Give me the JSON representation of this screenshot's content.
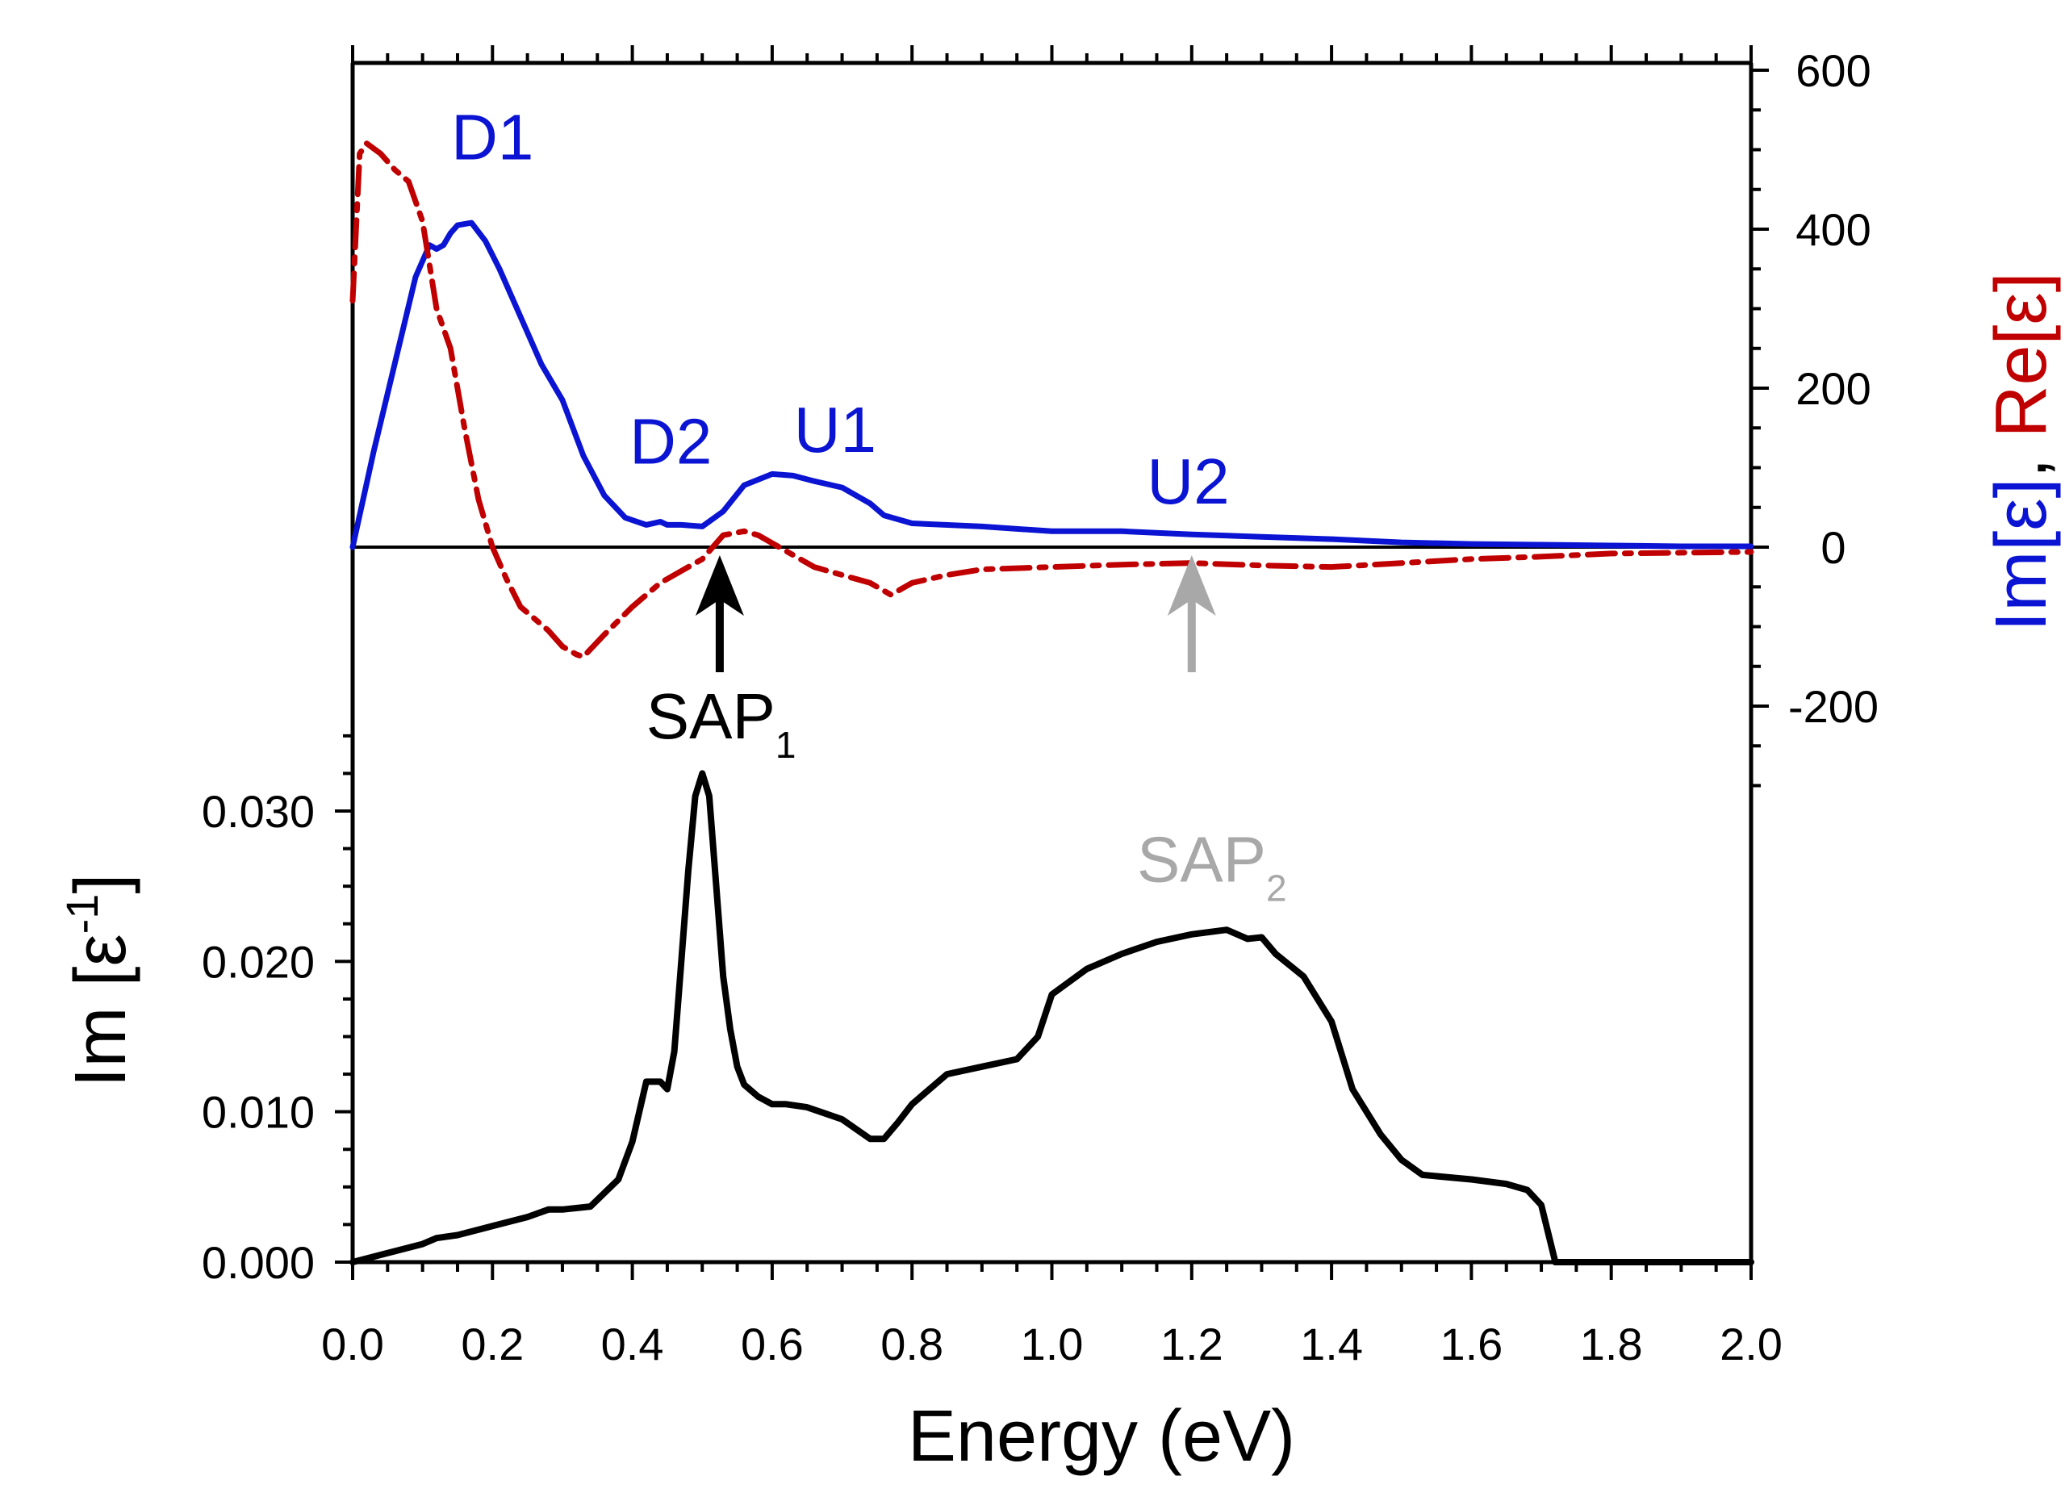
{
  "chart_data": {
    "type": "line",
    "x_axis": {
      "label": "Energy (eV)",
      "range": [
        0.0,
        2.0
      ],
      "major_ticks": [
        0.0,
        0.2,
        0.4,
        0.6,
        0.8,
        1.0,
        1.2,
        1.4,
        1.6,
        1.8,
        2.0
      ],
      "tick_labels": [
        "0.0",
        "0.2",
        "0.4",
        "0.6",
        "0.8",
        "1.0",
        "1.2",
        "1.4",
        "1.6",
        "1.8",
        "2.0"
      ]
    },
    "left_axis": {
      "label_main": "Im [ε",
      "label_sup": "-1",
      "label_close": "]",
      "range": [
        0.0,
        0.0345
      ],
      "major_ticks": [
        0.0,
        0.01,
        0.02,
        0.03
      ],
      "tick_labels": [
        "0.000",
        "0.010",
        "0.020",
        "0.030"
      ]
    },
    "right_axis": {
      "label_im": "Im[ε]",
      "label_sep": ", ",
      "label_re": "Re[ε]",
      "range": [
        -300,
        600
      ],
      "major_ticks": [
        -200,
        0,
        200,
        400,
        600
      ],
      "tick_labels": [
        "-200",
        "0",
        "200",
        "400",
        "600"
      ]
    },
    "series": [
      {
        "name": "Im[ε]",
        "axis": "right",
        "color": "#0a14d2",
        "style": "solid",
        "x": [
          0.0,
          0.03,
          0.06,
          0.09,
          0.11,
          0.12,
          0.13,
          0.14,
          0.15,
          0.17,
          0.19,
          0.21,
          0.24,
          0.27,
          0.3,
          0.33,
          0.36,
          0.39,
          0.42,
          0.44,
          0.45,
          0.47,
          0.5,
          0.53,
          0.56,
          0.6,
          0.63,
          0.66,
          0.7,
          0.74,
          0.76,
          0.8,
          0.9,
          1.0,
          1.1,
          1.2,
          1.3,
          1.4,
          1.5,
          1.6,
          1.7,
          1.8,
          1.9,
          2.0
        ],
        "y": [
          0,
          120,
          230,
          340,
          380,
          375,
          380,
          395,
          405,
          408,
          385,
          350,
          290,
          230,
          185,
          115,
          65,
          37,
          28,
          32,
          28,
          28,
          26,
          45,
          78,
          92,
          90,
          83,
          75,
          55,
          40,
          30,
          26,
          20,
          20,
          16,
          13,
          10,
          6,
          4,
          3,
          2,
          1,
          1
        ]
      },
      {
        "name": "Re[ε]",
        "axis": "right",
        "color": "#c00000",
        "style": "dash-dot",
        "x": [
          0.0,
          0.01,
          0.02,
          0.04,
          0.06,
          0.08,
          0.1,
          0.12,
          0.14,
          0.16,
          0.18,
          0.2,
          0.22,
          0.24,
          0.26,
          0.28,
          0.3,
          0.32,
          0.33,
          0.36,
          0.4,
          0.44,
          0.47,
          0.5,
          0.53,
          0.56,
          0.58,
          0.62,
          0.66,
          0.7,
          0.74,
          0.77,
          0.8,
          0.85,
          0.9,
          1.0,
          1.1,
          1.2,
          1.3,
          1.4,
          1.5,
          1.6,
          1.7,
          1.8,
          1.9,
          2.0
        ],
        "y": [
          310,
          495,
          508,
          495,
          475,
          460,
          410,
          300,
          250,
          150,
          60,
          0,
          -40,
          -75,
          -90,
          -105,
          -125,
          -135,
          -138,
          -110,
          -75,
          -45,
          -30,
          -15,
          15,
          20,
          15,
          -5,
          -25,
          -35,
          -45,
          -60,
          -45,
          -35,
          -28,
          -25,
          -22,
          -20,
          -23,
          -25,
          -20,
          -15,
          -12,
          -8,
          -7,
          -6
        ]
      },
      {
        "name": "Im [ε-1]",
        "axis": "left",
        "color": "#000000",
        "style": "solid",
        "x": [
          0.0,
          0.05,
          0.1,
          0.12,
          0.15,
          0.2,
          0.25,
          0.28,
          0.3,
          0.34,
          0.38,
          0.4,
          0.42,
          0.44,
          0.45,
          0.46,
          0.47,
          0.48,
          0.49,
          0.5,
          0.51,
          0.52,
          0.53,
          0.54,
          0.55,
          0.56,
          0.58,
          0.6,
          0.62,
          0.65,
          0.7,
          0.74,
          0.76,
          0.78,
          0.8,
          0.85,
          0.9,
          0.95,
          0.98,
          1.0,
          1.05,
          1.1,
          1.15,
          1.2,
          1.25,
          1.28,
          1.3,
          1.32,
          1.36,
          1.4,
          1.43,
          1.47,
          1.5,
          1.53,
          1.6,
          1.65,
          1.68,
          1.7,
          1.72,
          1.75,
          1.8,
          1.9,
          2.0
        ],
        "y": [
          0.0,
          0.0006,
          0.0012,
          0.0016,
          0.0018,
          0.0024,
          0.003,
          0.0035,
          0.0035,
          0.0037,
          0.0055,
          0.008,
          0.012,
          0.012,
          0.0115,
          0.014,
          0.02,
          0.026,
          0.031,
          0.0325,
          0.031,
          0.025,
          0.019,
          0.0155,
          0.013,
          0.0118,
          0.011,
          0.0105,
          0.0105,
          0.0103,
          0.0095,
          0.0082,
          0.0082,
          0.0093,
          0.0105,
          0.0125,
          0.013,
          0.0135,
          0.015,
          0.0178,
          0.0195,
          0.0205,
          0.0213,
          0.0218,
          0.0221,
          0.0215,
          0.0216,
          0.0205,
          0.019,
          0.016,
          0.0115,
          0.0085,
          0.0068,
          0.0058,
          0.0055,
          0.0052,
          0.0048,
          0.0038,
          0.0,
          0.0,
          0.0,
          0.0,
          0.0
        ]
      }
    ],
    "annotations": [
      {
        "text": "D1",
        "x": 0.2,
        "axis": "right",
        "y": 488,
        "color": "#0a14d2"
      },
      {
        "text": "D2",
        "x": 0.455,
        "axis": "right",
        "y": 105,
        "color": "#0a14d2"
      },
      {
        "text": "U1",
        "x": 0.69,
        "axis": "right",
        "y": 120,
        "color": "#0a14d2"
      },
      {
        "text": "U2",
        "x": 1.195,
        "axis": "right",
        "y": 55,
        "color": "#0a14d2"
      }
    ],
    "arrows": [
      {
        "label": "SAP",
        "subscript": "1",
        "x": 0.525,
        "color": "#000000",
        "label_x": 0.55,
        "label_axis_y": 0.02
      },
      {
        "label": "SAP",
        "subscript": "2",
        "x": 1.2,
        "color": "#a8a8a8",
        "label_x": 1.2,
        "label_axis_y": 0.0253
      }
    ]
  }
}
